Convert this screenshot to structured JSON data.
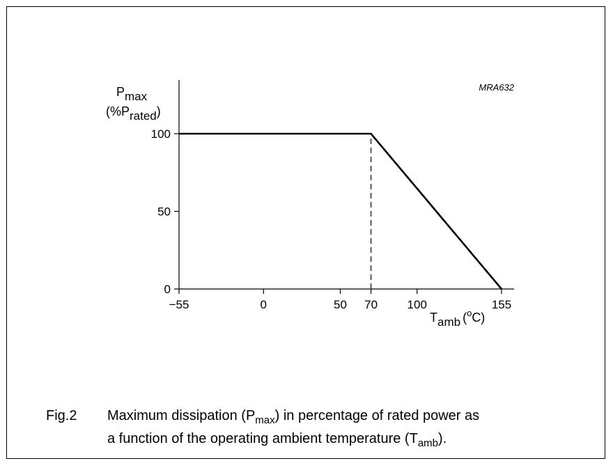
{
  "chart_data": {
    "type": "line",
    "code": "MRA632",
    "ylabel": {
      "main": "P",
      "sub": "max",
      "unit_open": "(%P",
      "unit_sub": "rated",
      "unit_close": ")"
    },
    "xlabel": {
      "main": "T",
      "sub": "amb",
      "unit_open": "(",
      "unit_sup": "o",
      "unit_close": "C)"
    },
    "xlim": [
      -55,
      155
    ],
    "ylim": [
      0,
      100
    ],
    "x_ticks": [
      -55,
      0,
      50,
      70,
      100,
      155
    ],
    "x_tick_labels": [
      "−55",
      "0",
      "50",
      "70",
      "100",
      "155"
    ],
    "y_ticks": [
      0,
      50,
      100
    ],
    "y_tick_labels": [
      "0",
      "50",
      "100"
    ],
    "series": [
      {
        "x": [
          -55,
          70,
          155
        ],
        "y": [
          100,
          100,
          0
        ]
      }
    ],
    "reference_lines": [
      {
        "style": "dashed",
        "x": [
          70,
          70
        ],
        "y": [
          0,
          100
        ]
      }
    ]
  },
  "caption": {
    "fig_label": "Fig.2",
    "line1_a": "Maximum dissipation (P",
    "line1_sub": "max",
    "line1_b": ") in percentage of rated power as",
    "line2_a": "a function of the operating ambient temperature (T",
    "line2_sub": "amb",
    "line2_b": ")."
  }
}
